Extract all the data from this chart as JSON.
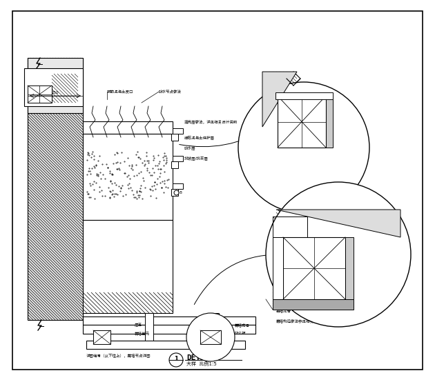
{
  "bg_color": "#ffffff",
  "border_color": "#000000",
  "line_color": "#000000",
  "hatch_color": "#000000",
  "title": "DETAIL",
  "subtitle": "大样  比例1:5",
  "detail_label": "1",
  "fig_width": 6.1,
  "fig_height": 5.35
}
